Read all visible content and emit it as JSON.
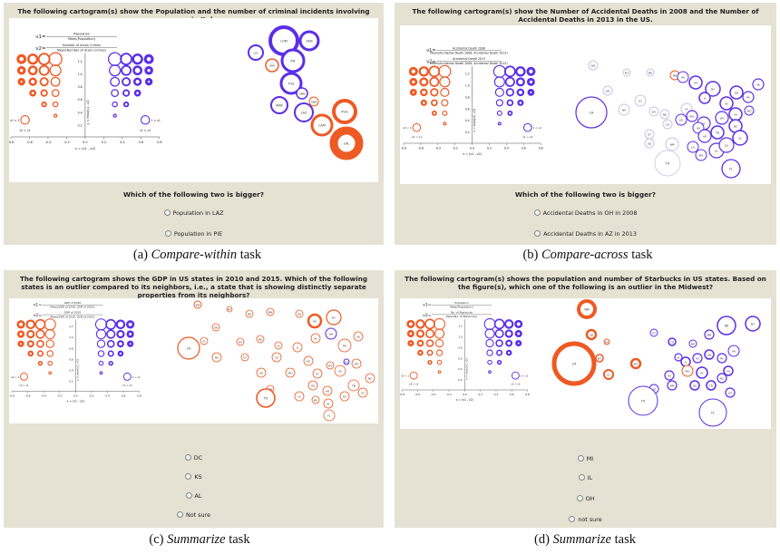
{
  "panels": [
    {
      "id": "pa",
      "title": "The following cartogram(s) show the Population and the number of criminal incidents involving arson in Italy.",
      "legend": {
        "v1": "v1=",
        "v2": "v2=",
        "v1_num": "Population",
        "v1_den": "Mean(Population)",
        "v2_num": "Number of Arson Crimes",
        "v2_den": "Mean(Number of Arson Crimes)"
      },
      "question": "Which of the following two is bigger?",
      "options": [
        "Population in LAZ",
        "Population in PIE"
      ],
      "caption_letter": "(a)",
      "caption_task": "Compare-within",
      "caption_suffix": "task",
      "map_labels": [
        "LOM",
        "VEN",
        "PIE",
        "LIG",
        "EMI",
        "TOS",
        "MAR",
        "UMB",
        "LAZ",
        "ABR",
        "CAM",
        "PUG",
        "CAL"
      ]
    },
    {
      "id": "pb",
      "title": "The following cartogram(s) show the Number of Accidental Deaths in 2008 and the Number of Accidental Deaths in 2013 in the US.",
      "legend": {
        "v1": "v1=",
        "v2": "v2=",
        "v1_num": "Accidental Death 2008",
        "v1_den": "Mean(Accidental Death 2008, Accidental Death 2013)",
        "v2_num": "Accidental Death 2013",
        "v2_den": "Mean(Accidental Death 2008, Accidental Death 2013)"
      },
      "question": "Which of the following two is bigger?",
      "options": [
        "Accidental Deaths in OH in 2008",
        "Accidental Deaths in AZ in 2013"
      ],
      "caption_letter": "(b)",
      "caption_task": "Compare-across",
      "caption_suffix": "task",
      "map_labels": [
        "WA",
        "MT",
        "ND",
        "MN",
        "WI",
        "MI",
        "NY",
        "OR",
        "CA",
        "NV",
        "ID",
        "WY",
        "NE",
        "IA",
        "IL",
        "IN",
        "OH",
        "PA",
        "NJ",
        "UT",
        "CO",
        "KS",
        "MO",
        "KY",
        "WV",
        "VA",
        "MD",
        "AZ",
        "NM",
        "OK",
        "AR",
        "TN",
        "NC",
        "TX",
        "LA",
        "MS",
        "AL",
        "GA",
        "SC",
        "FL"
      ]
    },
    {
      "id": "pc",
      "title": "The following cartogram shows the GDP in US states in 2010 and 2015. Which of the following states is an outlier compared to its neighbors, i.e., a state that is showing distinctly separate properties from its neighbors?",
      "legend": {
        "v1": "v1=",
        "v2": "v2=",
        "v1_num": "GDP of 2010",
        "v1_den": "Mean(GDP of 2010, GDP of 2015)",
        "v2_num": "GDP of 2015",
        "v2_den": "Mean(GDP of 2010, GDP of 2015)"
      },
      "question": "",
      "options": [
        "DC",
        "KS",
        "AL",
        "Not sure"
      ],
      "caption_letter": "(c)",
      "caption_task": "Summarize",
      "caption_suffix": "task",
      "map_labels": [
        "WA",
        "MT",
        "ND",
        "MN",
        "WI",
        "MI",
        "NY",
        "OR",
        "CA",
        "NV",
        "ID",
        "WY",
        "NE",
        "IA",
        "IL",
        "IN",
        "OH",
        "PA",
        "NJ",
        "UT",
        "CO",
        "KS",
        "MO",
        "KY",
        "WV",
        "VA",
        "MD",
        "AZ",
        "NM",
        "OK",
        "AR",
        "TN",
        "NC",
        "TX",
        "LA",
        "MS",
        "AL",
        "GA",
        "SC",
        "FL",
        "DC"
      ]
    },
    {
      "id": "pd",
      "title": "The following cartogram(s) shows the population and number of Starbucks in US states. Based on the figure(s), which one of the following is an outlier in the Midwest?",
      "legend": {
        "v1": "v1=",
        "v2": "v2=",
        "v1_num": "Population",
        "v1_den": "Mean(Population)",
        "v2_num": "No. of Starbucks",
        "v2_den": "Mean(No. of Starbucks)"
      },
      "question": "",
      "options": [
        "MI",
        "IL",
        "OH",
        "not sure"
      ],
      "caption_letter": "(d)",
      "caption_task": "Summarize",
      "caption_suffix": "task",
      "map_labels": [
        "WA",
        "OR",
        "CA",
        "NV",
        "MT",
        "ID",
        "WY",
        "UT",
        "CO",
        "ND",
        "MN",
        "WI",
        "MI",
        "NY",
        "IA",
        "IL",
        "IN",
        "OH",
        "PA",
        "KS",
        "MO",
        "KY",
        "VA",
        "AZ",
        "NM",
        "OK",
        "TX",
        "TN",
        "NC",
        "GA",
        "FL"
      ]
    }
  ],
  "legend_chart": {
    "x_ticks": [
      "-0.8",
      "-0.6",
      "-0.4",
      "-0.2",
      "0.0",
      "0.2",
      "0.4",
      "0.6",
      "0.8"
    ],
    "x_label": "x = (v1 - v2)",
    "y_label": "y = max(v1, v2)",
    "left_note_top": "v2 < 1",
    "left_note_bottom": "v2 > v1",
    "right_note_top": "1 < v1",
    "right_note_bottom": "v1 > v2",
    "y_ticks": [
      "1.2",
      "1.0",
      "0.8",
      "0.6",
      "0.4",
      "0.2"
    ]
  },
  "colors": {
    "orange": "#ee5a24",
    "purple": "#5a2ee8",
    "panel_bg": "#e5e1d3"
  }
}
